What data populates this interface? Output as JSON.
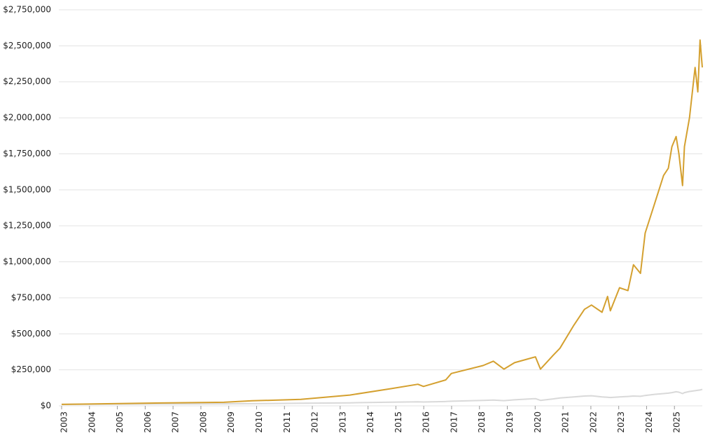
{
  "chart_data": {
    "type": "line",
    "x": [
      2003.0,
      2006.57,
      2008.83,
      2009.83,
      2011.59,
      2013.35,
      2014.86,
      2015.79,
      2015.99,
      2016.79,
      2016.99,
      2018.13,
      2018.5,
      2018.88,
      2019.26,
      2020.01,
      2020.19,
      2020.64,
      2020.89,
      2021.39,
      2021.77,
      2022.02,
      2022.4,
      2022.6,
      2022.7,
      2023.03,
      2023.33,
      2023.53,
      2023.78,
      2023.95,
      2024.28,
      2024.61,
      2024.78,
      2024.91,
      2025.06,
      2025.16,
      2025.29,
      2025.36,
      2025.54,
      2025.74,
      2025.84,
      2025.92,
      2026.0
    ],
    "series": [
      {
        "color": "#d4a02f",
        "values": [
          10000,
          20000,
          25000,
          35000,
          45000,
          75000,
          120000,
          150000,
          135000,
          180000,
          225000,
          280000,
          310000,
          255000,
          300000,
          340000,
          255000,
          350000,
          400000,
          560000,
          670000,
          700000,
          650000,
          760000,
          660000,
          820000,
          800000,
          980000,
          920000,
          1200000,
          1400000,
          1600000,
          1650000,
          1800000,
          1870000,
          1750000,
          1530000,
          1800000,
          2000000,
          2350000,
          2180000,
          2540000,
          2350000
        ]
      },
      {
        "color": "#d9d9d9",
        "values": [
          10000,
          13000,
          14000,
          15000,
          18000,
          21000,
          26000,
          28000,
          27000,
          30000,
          32000,
          38000,
          40000,
          36000,
          42000,
          50000,
          38000,
          48000,
          55000,
          62000,
          68000,
          70000,
          62000,
          60000,
          58000,
          62000,
          65000,
          68000,
          66000,
          72000,
          80000,
          85000,
          88000,
          92000,
          98000,
          95000,
          85000,
          92000,
          100000,
          105000,
          108000,
          110000,
          115000
        ]
      }
    ],
    "xlim": [
      2003,
      2026
    ],
    "xticks": [
      2003,
      2004,
      2005,
      2006,
      2007,
      2008,
      2009,
      2010,
      2011,
      2012,
      2013,
      2014,
      2015,
      2016,
      2017,
      2018,
      2019,
      2020,
      2021,
      2022,
      2023,
      2024,
      2025
    ],
    "ylim": [
      0,
      2750000
    ],
    "yticks": [
      {
        "value": 0,
        "label": "$0"
      },
      {
        "value": 250000,
        "label": "$250,000"
      },
      {
        "value": 500000,
        "label": "$500,000"
      },
      {
        "value": 750000,
        "label": "$750,000"
      },
      {
        "value": 1000000,
        "label": "$1,000,000"
      },
      {
        "value": 1250000,
        "label": "$1,250,000"
      },
      {
        "value": 1500000,
        "label": "$1,500,000"
      },
      {
        "value": 1750000,
        "label": "$1,750,000"
      },
      {
        "value": 2000000,
        "label": "$2,000,000"
      },
      {
        "value": 2250000,
        "label": "$2,250,000"
      },
      {
        "value": 2500000,
        "label": "$2,500,000"
      },
      {
        "value": 2750000,
        "label": "$2,750,000"
      }
    ],
    "grid": true
  }
}
